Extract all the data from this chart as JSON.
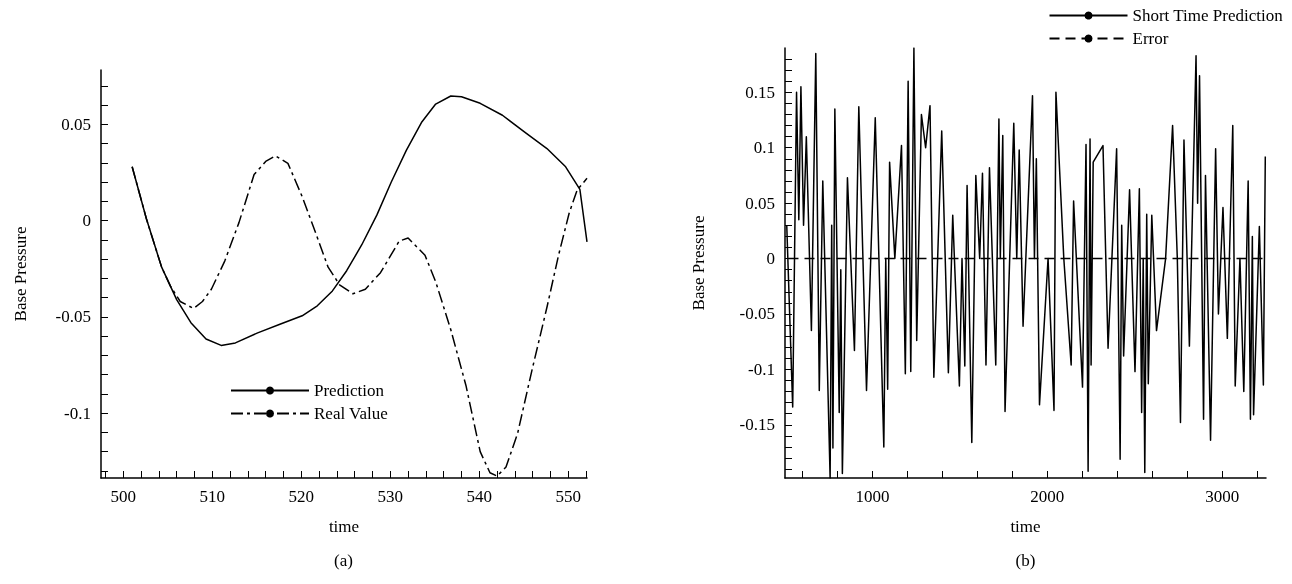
{
  "chart_data": [
    {
      "type": "line",
      "xlabel": "time",
      "ylabel": "Base Pressure",
      "annotations": [
        "(a)"
      ],
      "legend": "bottom",
      "grid": false,
      "marker": "none",
      "xlim": [
        497.5,
        552.1
      ],
      "ylim": [
        -0.1337,
        0.0783
      ],
      "xticks": [
        {
          "value": 498,
          "label": null
        },
        500,
        {
          "value": 502,
          "label": null
        },
        {
          "value": 504,
          "label": null
        },
        {
          "value": 506,
          "label": null
        },
        {
          "value": 508,
          "label": null
        },
        510,
        {
          "value": 512,
          "label": null
        },
        {
          "value": 514,
          "label": null
        },
        {
          "value": 516,
          "label": null
        },
        {
          "value": 518,
          "label": null
        },
        520,
        {
          "value": 522,
          "label": null
        },
        {
          "value": 524,
          "label": null
        },
        {
          "value": 526,
          "label": null
        },
        {
          "value": 528,
          "label": null
        },
        530,
        {
          "value": 532,
          "label": null
        },
        {
          "value": 534,
          "label": null
        },
        {
          "value": 536,
          "label": null
        },
        {
          "value": 538,
          "label": null
        },
        540,
        {
          "value": 542,
          "label": null
        },
        {
          "value": 544,
          "label": null
        },
        {
          "value": 546,
          "label": null
        },
        {
          "value": 548,
          "label": null
        },
        550,
        {
          "value": 552,
          "label": null
        }
      ],
      "yticks": [
        {
          "value": -0.13,
          "label": null
        },
        {
          "value": -0.12,
          "label": null
        },
        {
          "value": -0.11,
          "label": null
        },
        -0.1,
        {
          "value": -0.09,
          "label": null
        },
        {
          "value": -0.08,
          "label": null
        },
        {
          "value": -0.07,
          "label": null
        },
        {
          "value": -0.06,
          "label": null
        },
        -0.05,
        {
          "value": -0.04,
          "label": null
        },
        {
          "value": -0.03,
          "label": null
        },
        {
          "value": -0.02,
          "label": null
        },
        {
          "value": -0.01,
          "label": null
        },
        0,
        {
          "value": 0.01,
          "label": null
        },
        {
          "value": 0.02,
          "label": null
        },
        {
          "value": 0.03,
          "label": null
        },
        {
          "value": 0.04,
          "label": null
        },
        0.05,
        {
          "value": 0.06,
          "label": null
        },
        {
          "value": 0.07,
          "label": null
        }
      ],
      "series": [
        {
          "name": "Prediction",
          "color": "#000000",
          "line_style": "solid",
          "x": [
            501,
            502.6,
            504.3,
            506,
            507.6,
            509.3,
            511,
            512.6,
            515.1,
            517.6,
            520.1,
            521.8,
            523.5,
            525.1,
            526.8,
            528.5,
            530.1,
            531.8,
            533.5,
            535.1,
            536.8,
            538,
            540.1,
            542.6,
            545.1,
            547.6,
            549.7,
            551.3,
            552.1
          ],
          "values": [
            0.028,
            0.001,
            -0.024,
            -0.041,
            -0.053,
            -0.0615,
            -0.0648,
            -0.0635,
            -0.0583,
            -0.0538,
            -0.0494,
            -0.0442,
            -0.0365,
            -0.026,
            -0.0125,
            0.003,
            0.02,
            0.0365,
            0.051,
            0.0606,
            0.0648,
            0.0644,
            0.061,
            0.0548,
            0.046,
            0.0375,
            0.028,
            0.0163,
            -0.011
          ]
        },
        {
          "name": "Real Value",
          "color": "#000000",
          "line_style": "dashdot",
          "x": [
            501,
            502.6,
            504.3,
            505.3,
            506.4,
            507.9,
            508.9,
            509.9,
            511.4,
            513,
            514.7,
            516,
            517.1,
            518.5,
            520.1,
            521.8,
            523,
            524.3,
            525.8,
            527.2,
            528.9,
            531,
            532,
            533.9,
            535.1,
            536.8,
            538.5,
            540.1,
            541.2,
            542,
            543,
            544.3,
            545.9,
            547.6,
            548.9,
            550.1,
            551,
            552.1
          ],
          "values": [
            0.028,
            0.001,
            -0.024,
            -0.034,
            -0.042,
            -0.0456,
            -0.042,
            -0.0356,
            -0.021,
            -0.001,
            0.024,
            0.0308,
            0.0337,
            0.0298,
            0.0125,
            -0.0087,
            -0.024,
            -0.0333,
            -0.038,
            -0.0356,
            -0.027,
            -0.0106,
            -0.009,
            -0.018,
            -0.0317,
            -0.0567,
            -0.0856,
            -0.12,
            -0.131,
            -0.1327,
            -0.128,
            -0.1106,
            -0.078,
            -0.045,
            -0.018,
            0.004,
            0.016,
            0.022
          ]
        }
      ]
    },
    {
      "type": "line",
      "xlabel": "time",
      "ylabel": "Base Pressure",
      "annotations": [
        "(b)"
      ],
      "legend": "top right",
      "grid": false,
      "marker": "none",
      "xlim": [
        500,
        3250
      ],
      "ylim": [
        -0.198,
        0.19
      ],
      "xticks": [
        {
          "value": 600,
          "label": null
        },
        {
          "value": 800,
          "label": null
        },
        1000,
        {
          "value": 1200,
          "label": null
        },
        {
          "value": 1400,
          "label": null
        },
        {
          "value": 1600,
          "label": null
        },
        {
          "value": 1800,
          "label": null
        },
        2000,
        {
          "value": 2200,
          "label": null
        },
        {
          "value": 2400,
          "label": null
        },
        {
          "value": 2600,
          "label": null
        },
        {
          "value": 2800,
          "label": null
        },
        3000,
        {
          "value": 3200,
          "label": null
        }
      ],
      "yticks": [
        {
          "value": -0.19,
          "label": null
        },
        {
          "value": -0.18,
          "label": null
        },
        {
          "value": -0.17,
          "label": null
        },
        {
          "value": -0.16,
          "label": null
        },
        -0.15,
        {
          "value": -0.14,
          "label": null
        },
        {
          "value": -0.13,
          "label": null
        },
        {
          "value": -0.12,
          "label": null
        },
        {
          "value": -0.11,
          "label": null
        },
        -0.1,
        {
          "value": -0.09,
          "label": null
        },
        {
          "value": -0.08,
          "label": null
        },
        {
          "value": -0.07,
          "label": null
        },
        {
          "value": -0.06,
          "label": null
        },
        -0.05,
        {
          "value": -0.04,
          "label": null
        },
        {
          "value": -0.03,
          "label": null
        },
        {
          "value": -0.02,
          "label": null
        },
        {
          "value": -0.01,
          "label": null
        },
        0,
        {
          "value": 0.01,
          "label": null
        },
        {
          "value": 0.02,
          "label": null
        },
        {
          "value": 0.03,
          "label": null
        },
        {
          "value": 0.04,
          "label": null
        },
        0.05,
        {
          "value": 0.06,
          "label": null
        },
        {
          "value": 0.07,
          "label": null
        },
        {
          "value": 0.08,
          "label": null
        },
        {
          "value": 0.09,
          "label": null
        },
        0.1,
        {
          "value": 0.11,
          "label": null
        },
        {
          "value": 0.12,
          "label": null
        },
        {
          "value": 0.13,
          "label": null
        },
        {
          "value": 0.14,
          "label": null
        },
        0.15,
        {
          "value": 0.16,
          "label": null
        },
        {
          "value": 0.17,
          "label": null
        },
        {
          "value": 0.18,
          "label": null
        }
      ],
      "series": [
        {
          "name": "Short Time Prediction",
          "color": "#000000",
          "line_style": "solid",
          "x": [
            510,
            544,
            566,
            579,
            591,
            606,
            622,
            651,
            676,
            696,
            716,
            758,
            767,
            774,
            785,
            810,
            819,
            828,
            857,
            897,
            922,
            966,
            1016,
            1065,
            1076,
            1087,
            1098,
            1128,
            1166,
            1188,
            1204,
            1219,
            1237,
            1253,
            1280,
            1304,
            1329,
            1351,
            1396,
            1434,
            1459,
            1497,
            1512,
            1528,
            1541,
            1568,
            1591,
            1613,
            1629,
            1649,
            1669,
            1705,
            1723,
            1731,
            1745,
            1758,
            1808,
            1825,
            1839,
            1861,
            1915,
            1926,
            1937,
            1955,
            2004,
            2038,
            2049,
            2094,
            2136,
            2150,
            2201,
            2221,
            2233,
            2244,
            2250,
            2262,
            2318,
            2347,
            2396,
            2416,
            2425,
            2436,
            2470,
            2501,
            2526,
            2539,
            2548,
            2557,
            2568,
            2577,
            2597,
            2624,
            2676,
            2716,
            2743,
            2761,
            2781,
            2812,
            2850,
            2859,
            2870,
            2893,
            2904,
            2933,
            2962,
            2978,
            3004,
            3029,
            3060,
            3074,
            3101,
            3123,
            3148,
            3161,
            3172,
            3179,
            3212,
            3235,
            3246
          ],
          "values": [
            0.03,
            -0.134,
            0.15,
            0.035,
            0.155,
            0.03,
            0.11,
            -0.065,
            0.185,
            -0.119,
            0.07,
            -0.198,
            0.03,
            -0.171,
            0.135,
            -0.139,
            -0.01,
            -0.194,
            0.073,
            -0.083,
            0.137,
            -0.119,
            0.127,
            -0.17,
            0,
            -0.118,
            0.087,
            0,
            0.102,
            -0.104,
            0.16,
            -0.102,
            0.19,
            -0.074,
            0.13,
            0.1,
            0.138,
            -0.107,
            0.115,
            -0.103,
            0.039,
            -0.115,
            0,
            -0.097,
            0.066,
            -0.166,
            0.075,
            0,
            0.077,
            -0.096,
            0.082,
            -0.096,
            0.126,
            0,
            0.111,
            -0.138,
            0.122,
            0,
            0.098,
            -0.061,
            0.147,
            0,
            0.09,
            -0.132,
            0,
            -0.137,
            0.15,
            0,
            -0.096,
            0.052,
            -0.116,
            0.103,
            -0.192,
            0.108,
            -0.096,
            0.087,
            0.102,
            -0.081,
            0.099,
            -0.181,
            0.03,
            -0.088,
            0.062,
            -0.102,
            0.063,
            -0.139,
            0,
            -0.193,
            0.04,
            -0.113,
            0.039,
            -0.065,
            0,
            0.12,
            0,
            -0.148,
            0.107,
            -0.079,
            0.183,
            0.05,
            0.165,
            -0.145,
            0.075,
            -0.164,
            0.099,
            -0.05,
            0.046,
            -0.072,
            0.12,
            -0.115,
            0,
            -0.12,
            0.07,
            -0.145,
            0.02,
            -0.141,
            0.029,
            -0.114,
            0.092
          ]
        },
        {
          "name": "Error",
          "color": "#000000",
          "line_style": "dashed",
          "x": [
            520,
            3246
          ],
          "values": [
            0,
            0
          ]
        }
      ]
    }
  ]
}
